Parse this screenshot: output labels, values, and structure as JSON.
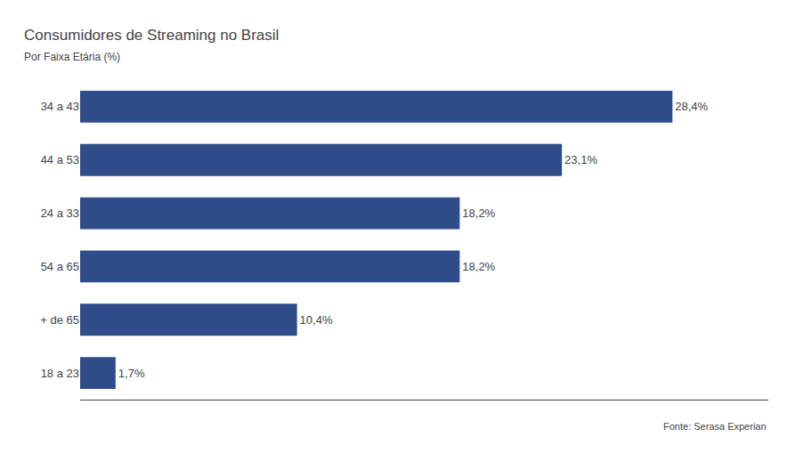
{
  "chart_data": {
    "type": "bar",
    "orientation": "horizontal",
    "title": "Consumidores de Streaming no Brasil",
    "subtitle": "Por Faixa Etária (%)",
    "categories": [
      "34 a 43",
      "44 a 53",
      "24 a 33",
      "54 a 65",
      "+ de 65",
      "18 a 23"
    ],
    "values": [
      28.4,
      23.1,
      18.2,
      18.2,
      10.4,
      1.7
    ],
    "value_labels": [
      "28,4%",
      "23,1%",
      "18,2%",
      "18,2%",
      "10,4%",
      "1,7%"
    ],
    "data_labels": true,
    "color": "#2e4d8a",
    "xlim": [
      0,
      33
    ],
    "xticks": [],
    "tick_labels": "y",
    "grid": false,
    "annotations": [
      "Fonte: Serasa Experian"
    ]
  }
}
